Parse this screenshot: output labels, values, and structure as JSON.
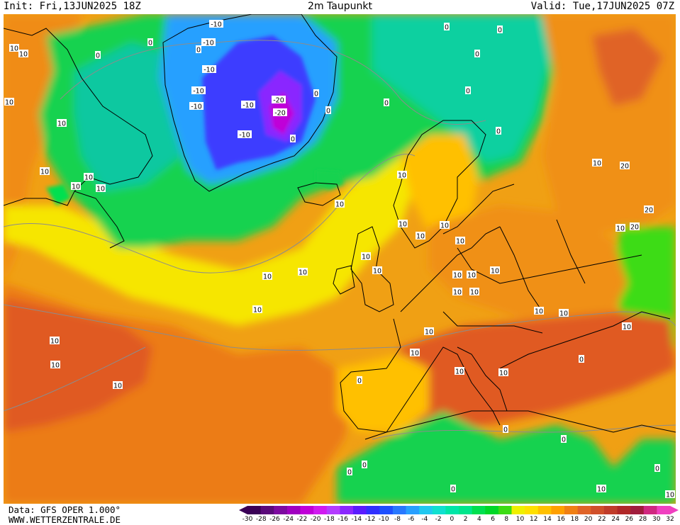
{
  "header": {
    "init": "Init: Fri,13JUN2025 18Z",
    "title": "2m Taupunkt",
    "valid": "Valid: Tue,17JUN2025 07Z"
  },
  "footer": {
    "data_source": "Data: GFS OPER 1.000°",
    "website": "WWW.WETTERZENTRALE.DE"
  },
  "legend": {
    "ticks": [
      "-30",
      "-28",
      "-26",
      "-24",
      "-22",
      "-20",
      "-18",
      "-16",
      "-14",
      "-12",
      "-10",
      "-8",
      "-6",
      "-4",
      "-2",
      "0",
      "2",
      "4",
      "6",
      "8",
      "10",
      "12",
      "14",
      "16",
      "18",
      "20",
      "22",
      "24",
      "26",
      "28",
      "30",
      "32"
    ],
    "colors": [
      "#3a0056",
      "#5a0a7a",
      "#7d0aa0",
      "#a000c0",
      "#c000d8",
      "#d01af0",
      "#b43cff",
      "#8a28ff",
      "#5a1cff",
      "#3030ff",
      "#1e50ff",
      "#2878ff",
      "#28a0ff",
      "#20c8f0",
      "#10e0d0",
      "#00e6a8",
      "#00e68c",
      "#00e050",
      "#00d828",
      "#3cdc14",
      "#f0f000",
      "#ffe000",
      "#ffc000",
      "#ffa000",
      "#f08014",
      "#e06428",
      "#d0502a",
      "#c03c2a",
      "#b02828",
      "#a01c3c",
      "#d02880",
      "#f040c0"
    ]
  },
  "contour_labels": [
    "10",
    "10",
    "10",
    "0",
    "10",
    "0",
    "0",
    "-10",
    "-10",
    "-10",
    "-10",
    "-10",
    "-20",
    "-20",
    "-10",
    "-10",
    "0",
    "0",
    "0",
    "0",
    "0",
    "0",
    "0",
    "0",
    "0",
    "10",
    "10",
    "10",
    "10",
    "10",
    "10",
    "10",
    "10",
    "10",
    "10",
    "10",
    "10",
    "10",
    "10",
    "10",
    "10",
    "10",
    "10",
    "10",
    "10",
    "10",
    "10",
    "10",
    "10",
    "20",
    "20",
    "20",
    "10",
    "10",
    "10",
    "10",
    "10",
    "10",
    "10",
    "10",
    "0",
    "0",
    "0",
    "0",
    "0",
    "0",
    "0",
    "0",
    "10",
    "10"
  ],
  "colors": {
    "frame": "#000000",
    "land_border": "#000000"
  }
}
